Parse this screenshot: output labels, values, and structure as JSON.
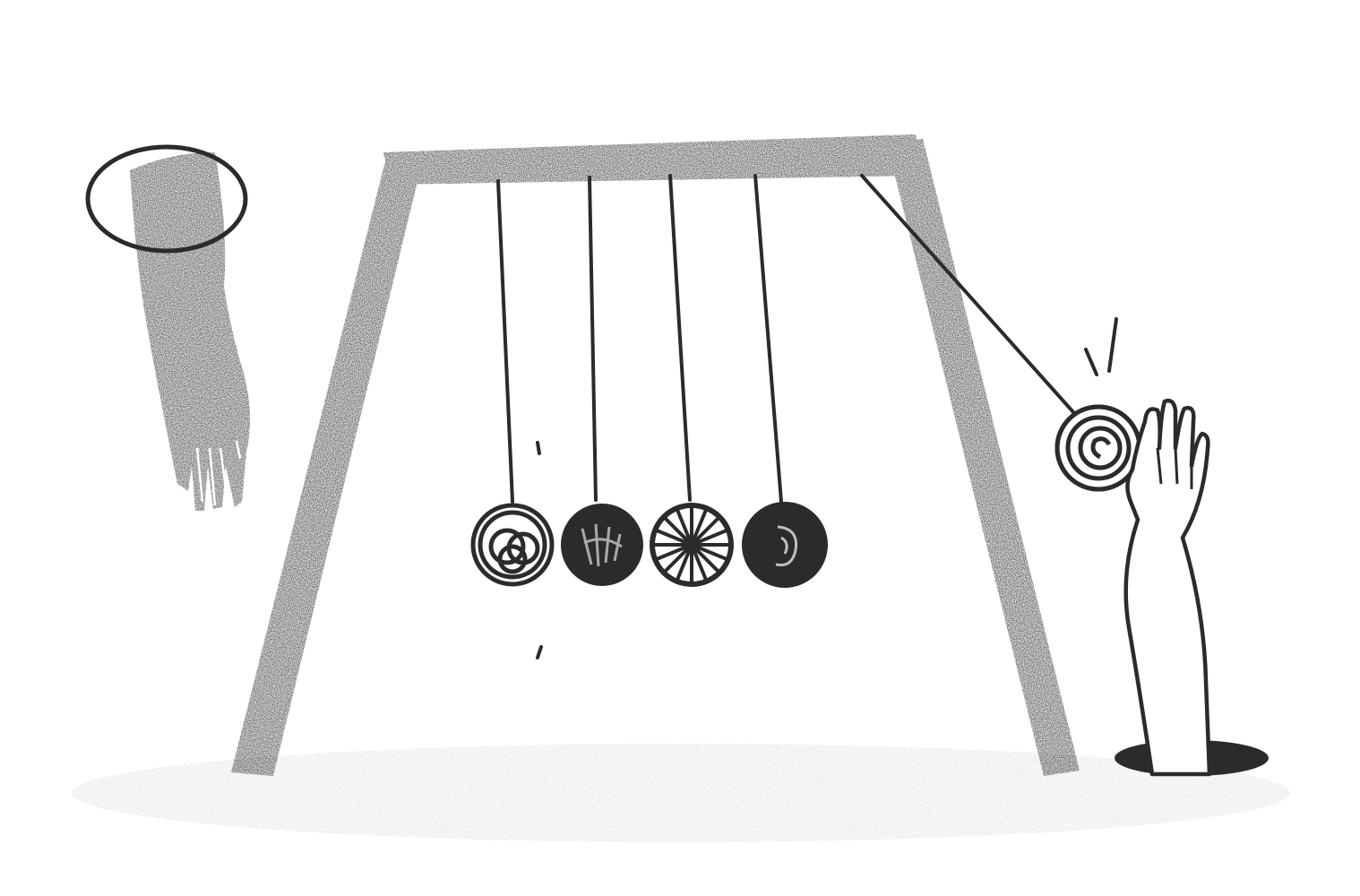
{
  "illustration": {
    "subject": "newtons-cradle-swing-with-hands",
    "colors": {
      "ink": "#2b2b2b",
      "paper": "#ffffff",
      "ground": "#cfcfcf"
    },
    "pendulum_count": 5,
    "pendulums_hanging": 4,
    "pendulums_pulled": 1,
    "ball_patterns": [
      "loops",
      "scribble",
      "spokes",
      "swirl",
      "spiral"
    ]
  }
}
